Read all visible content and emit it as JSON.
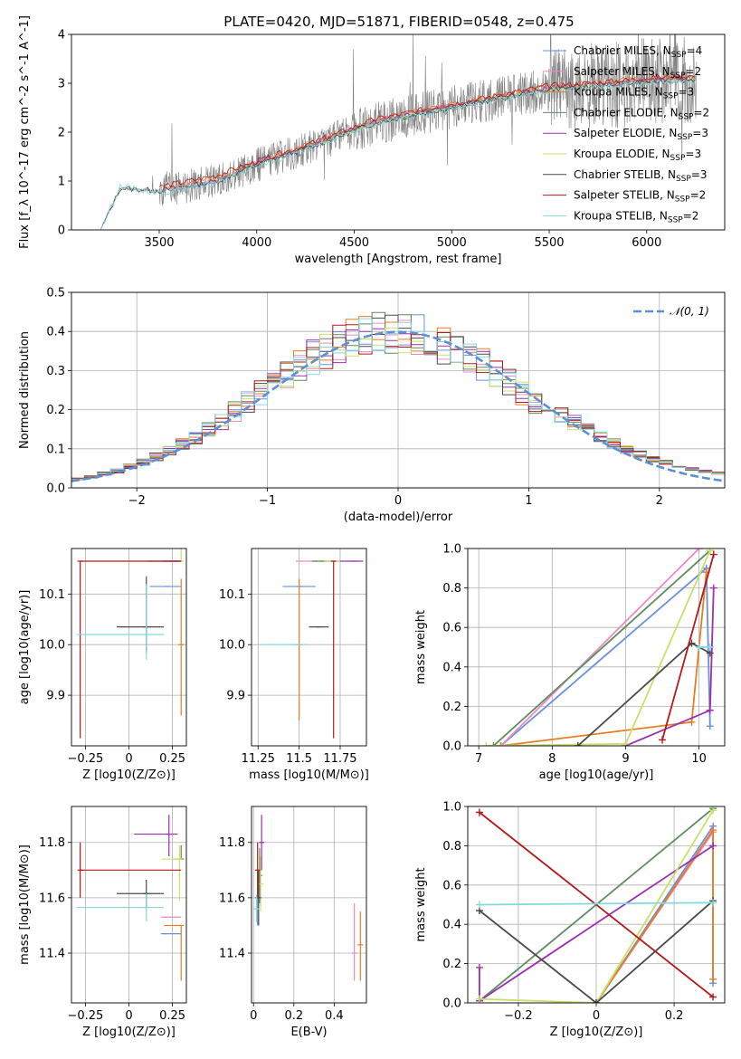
{
  "title": "PLATE=0420, MJD=51871, FIBERID=0548, z=0.475",
  "colors": {
    "series": [
      "#6a8fdc",
      "#e98ac5",
      "#e67e22",
      "#5e8c5e",
      "#9b30b0",
      "#c8e06a",
      "#4a4a4a",
      "#b51a1a",
      "#82d9de"
    ],
    "observed": "#808080",
    "normal": "#5b8fd6",
    "grid": "#b0b0b0"
  },
  "series_labels": [
    "Chabrier MILES, N_SSP=4",
    "Salpeter MILES, N_SSP=2",
    "Kroupa MILES, N_SSP=3",
    "Chabrier ELODIE, N_SSP=2",
    "Salpeter ELODIE, N_SSP=3",
    "Kroupa ELODIE, N_SSP=3",
    "Chabrier STELIB, N_SSP=3",
    "Salpeter STELIB, N_SSP=2",
    "Kroupa STELIB, N_SSP=2"
  ],
  "chart_data": [
    {
      "id": "spectrum",
      "type": "line",
      "title": "PLATE=0420, MJD=51871, FIBERID=0548, z=0.475",
      "xlabel": "wavelength [Angstrom, rest frame]",
      "ylabel": "Flux [f_λ 10^-17 erg cm^-2 s^-1 A^-1]",
      "xlim": [
        3050,
        6400
      ],
      "ylim": [
        0,
        4
      ],
      "xticks": [
        3500,
        4000,
        4500,
        5000,
        5500,
        6000
      ],
      "yticks": [
        0,
        1,
        2,
        3,
        4
      ],
      "legend_position": "top-right",
      "series": [
        {
          "name": "Chabrier MILES, N_SSP=4",
          "x": [
            3520,
            3800,
            4000,
            4300,
            4600,
            4900,
            5100,
            5300,
            5500,
            5700,
            6000,
            6250
          ],
          "y": [
            0.82,
            1.0,
            1.35,
            1.75,
            2.2,
            2.45,
            2.6,
            2.75,
            2.9,
            2.95,
            3.05,
            3.1
          ]
        },
        {
          "name": "Salpeter MILES, N_SSP=2",
          "x": [
            3520,
            3800,
            4000,
            4300,
            4600,
            4900,
            5100,
            5300,
            5500,
            5700,
            6000,
            6250
          ],
          "y": [
            0.84,
            1.03,
            1.37,
            1.77,
            2.22,
            2.47,
            2.62,
            2.77,
            2.92,
            2.97,
            3.07,
            3.12
          ]
        },
        {
          "name": "Kroupa MILES, N_SSP=3",
          "x": [
            3520,
            3800,
            4000,
            4300,
            4600,
            4900,
            5100,
            5300,
            5500,
            5700,
            6000,
            6250
          ],
          "y": [
            0.85,
            1.05,
            1.38,
            1.8,
            2.25,
            2.5,
            2.65,
            2.8,
            2.95,
            3.0,
            3.1,
            3.15
          ]
        },
        {
          "name": "Chabrier ELODIE, N_SSP=2",
          "x": [
            3900,
            4000,
            4300,
            4600,
            4900,
            5100,
            5300,
            5500,
            5700,
            6000,
            6250
          ],
          "y": [
            1.25,
            1.35,
            1.75,
            2.2,
            2.45,
            2.6,
            2.75,
            2.9,
            2.95,
            3.05,
            3.1
          ]
        },
        {
          "name": "Salpeter ELODIE, N_SSP=3",
          "x": [
            3900,
            4000,
            4300,
            4600,
            4900,
            5100,
            5300,
            5500,
            5700,
            6000,
            6250
          ],
          "y": [
            1.26,
            1.36,
            1.76,
            2.21,
            2.46,
            2.61,
            2.76,
            2.91,
            2.96,
            3.06,
            3.11
          ]
        },
        {
          "name": "Kroupa ELODIE, N_SSP=3",
          "x": [
            3900,
            4000,
            4300,
            4600,
            4900,
            5100,
            5300,
            5500,
            5700,
            6000,
            6250
          ],
          "y": [
            1.24,
            1.34,
            1.74,
            2.19,
            2.44,
            2.59,
            2.74,
            2.89,
            2.94,
            3.04,
            3.09
          ]
        },
        {
          "name": "Chabrier STELIB, N_SSP=3",
          "x": [
            3200,
            3300,
            3500,
            3800,
            4000,
            4300,
            4600,
            4900,
            5100,
            5300,
            5500,
            5700,
            6000,
            6250
          ],
          "y": [
            0.0,
            0.85,
            0.8,
            1.0,
            1.33,
            1.73,
            2.18,
            2.43,
            2.58,
            2.73,
            2.88,
            2.93,
            3.03,
            3.08
          ]
        },
        {
          "name": "Salpeter STELIB, N_SSP=2",
          "x": [
            3500,
            3800,
            4000,
            4300,
            4600,
            4900,
            5100,
            5300,
            5500,
            5700,
            6000,
            6250
          ],
          "y": [
            0.88,
            1.12,
            1.4,
            1.8,
            2.25,
            2.5,
            2.65,
            2.8,
            2.95,
            3.0,
            3.1,
            3.15
          ]
        },
        {
          "name": "Kroupa STELIB, N_SSP=2",
          "x": [
            3200,
            3300,
            3500,
            3800,
            4000,
            4300,
            4600,
            4900,
            5100,
            5300,
            5500,
            5700,
            6000,
            6250
          ],
          "y": [
            0.0,
            0.9,
            0.75,
            0.95,
            1.3,
            1.7,
            2.15,
            2.4,
            2.55,
            2.7,
            2.85,
            2.9,
            3.0,
            3.05
          ]
        }
      ]
    },
    {
      "id": "residuals",
      "type": "line",
      "xlabel": "(data-model)/error",
      "ylabel": "Normed distribution",
      "xlim": [
        -2.5,
        2.5
      ],
      "ylim": [
        0,
        0.5
      ],
      "xticks": [
        -2,
        -1,
        0,
        1,
        2
      ],
      "yticks": [
        0.0,
        0.1,
        0.2,
        0.3,
        0.4,
        0.5
      ],
      "legend": "𝒩(0, 1)",
      "legend_position": "top-right",
      "note": "step histograms of nine fits plus standard normal curve"
    },
    {
      "id": "age_vs_Z",
      "type": "scatter",
      "xlabel": "Z [log10(Z/Z⊙)]",
      "ylabel": "age [log10(age/yr)]",
      "xlim": [
        -0.33,
        0.33
      ],
      "ylim": [
        9.8,
        10.19
      ],
      "xticks": [
        -0.25,
        0.0,
        0.25
      ],
      "yticks": [
        9.9,
        10.0,
        10.1
      ],
      "points": [
        {
          "x": 0.22,
          "y": 10.115,
          "xerr": [
            0.1,
            0.08
          ],
          "yerr": [
            0.0,
            0.0
          ]
        },
        {
          "x": 0.25,
          "y": 10.165,
          "xerr": [
            0.05,
            0.05
          ],
          "yerr": [
            0.0,
            0.0
          ]
        },
        {
          "x": 0.3,
          "y": 10.0,
          "xerr": [
            0.0,
            0.0
          ],
          "yerr": [
            0.14,
            0.13
          ]
        },
        {
          "x": 0.12,
          "y": 10.165,
          "xerr": [
            0.0,
            0.18
          ],
          "yerr": [
            0.0,
            0.0
          ]
        },
        {
          "x": 0.28,
          "y": 10.165,
          "xerr": [
            0.09,
            0.02
          ],
          "yerr": [
            0.0,
            0.0
          ]
        },
        {
          "x": 0.3,
          "y": 10.165,
          "xerr": [
            0.0,
            0.0
          ],
          "yerr": [
            0.0,
            0.07
          ]
        },
        {
          "x": 0.1,
          "y": 10.035,
          "xerr": [
            0.17,
            0.1
          ],
          "yerr": [
            0.05,
            0.1
          ]
        },
        {
          "x": -0.28,
          "y": 10.165,
          "xerr": [
            0.0,
            0.58
          ],
          "yerr": [
            0.35,
            0.0
          ]
        },
        {
          "x": 0.1,
          "y": 10.02,
          "xerr": [
            0.4,
            0.1
          ],
          "yerr": [
            0.05,
            0.1
          ]
        }
      ]
    },
    {
      "id": "age_vs_mass",
      "type": "scatter",
      "xlabel": "mass [log10(M/M⊙)]",
      "ylabel": "",
      "xlim": [
        11.21,
        11.91
      ],
      "ylim": [
        9.8,
        10.19
      ],
      "xticks": [
        11.25,
        11.5,
        11.75
      ],
      "yticks": [
        9.9,
        10.0,
        10.1
      ],
      "points": [
        {
          "x": 11.5,
          "y": 10.115,
          "xerr": [
            0.1,
            0.1
          ]
        },
        {
          "x": 11.58,
          "y": 10.165,
          "xerr": [
            0.1,
            0.1
          ]
        },
        {
          "x": 11.5,
          "y": 10.0,
          "yerr": [
            0.15,
            0.13
          ]
        },
        {
          "x": 11.65,
          "y": 10.165,
          "xerr": [
            0.07,
            0.07
          ]
        },
        {
          "x": 11.83,
          "y": 10.165,
          "xerr": [
            0.1,
            0.06
          ]
        },
        {
          "x": 11.7,
          "y": 10.165,
          "xerr": [
            0.05,
            0.05
          ]
        },
        {
          "x": 11.62,
          "y": 10.035,
          "xerr": [
            0.06,
            0.06
          ]
        },
        {
          "x": 11.71,
          "y": 10.165,
          "yerr": [
            0.35,
            0.0
          ]
        },
        {
          "x": 11.47,
          "y": 10.0,
          "xerr": [
            0.2,
            0.08
          ]
        }
      ]
    },
    {
      "id": "massweight_vs_age",
      "type": "line",
      "xlabel": "age [log10(age/yr)]",
      "ylabel": "mass weight",
      "xlim": [
        6.85,
        10.35
      ],
      "ylim": [
        0,
        1
      ],
      "xticks": [
        7,
        8,
        9,
        10
      ],
      "yticks": [
        0.0,
        0.2,
        0.4,
        0.6,
        0.8,
        1.0
      ],
      "series": [
        {
          "name": "Chabrier MILES, N_SSP=4",
          "x": [
            7.3,
            10.1,
            10.15
          ],
          "y": [
            0.0,
            0.9,
            0.1
          ]
        },
        {
          "name": "Salpeter MILES, N_SSP=2",
          "x": [
            7.3,
            10.0
          ],
          "y": [
            0.0,
            1.0
          ]
        },
        {
          "name": "Kroupa MILES, N_SSP=3",
          "x": [
            7.3,
            9.9,
            10.1
          ],
          "y": [
            0.0,
            0.12,
            0.88
          ]
        },
        {
          "name": "Chabrier ELODIE, N_SSP=2",
          "x": [
            7.2,
            10.15
          ],
          "y": [
            0.0,
            0.99
          ]
        },
        {
          "name": "Salpeter ELODIE, N_SSP=3",
          "x": [
            9.0,
            10.15,
            10.2
          ],
          "y": [
            0.0,
            0.18,
            0.8
          ]
        },
        {
          "name": "Kroupa ELODIE, N_SSP=3",
          "x": [
            7.1,
            9.0,
            10.15
          ],
          "y": [
            0.0,
            0.01,
            0.99
          ]
        },
        {
          "name": "Chabrier STELIB, N_SSP=3",
          "x": [
            8.35,
            9.9,
            10.15
          ],
          "y": [
            0.0,
            0.52,
            0.47
          ]
        },
        {
          "name": "Salpeter STELIB, N_SSP=2",
          "x": [
            9.5,
            10.2
          ],
          "y": [
            0.03,
            0.97
          ]
        },
        {
          "name": "Kroupa STELIB, N_SSP=2",
          "x": [
            10.0,
            10.15
          ],
          "y": [
            0.5,
            0.5
          ]
        }
      ]
    },
    {
      "id": "mass_vs_Z",
      "type": "scatter",
      "xlabel": "Z [log10(Z/Z⊙)]",
      "ylabel": "mass [log10(M/M⊙)]",
      "xlim": [
        -0.33,
        0.33
      ],
      "ylim": [
        11.22,
        11.93
      ],
      "xticks": [
        -0.25,
        0.0,
        0.25
      ],
      "yticks": [
        11.4,
        11.6,
        11.8
      ],
      "points": [
        {
          "x": 0.2,
          "y": 11.47,
          "xerr": [
            0.0,
            0.1
          ]
        },
        {
          "x": 0.2,
          "y": 11.53,
          "xerr": [
            0.0,
            0.1
          ]
        },
        {
          "x": 0.3,
          "y": 11.5,
          "xerr": [
            0.1,
            0.0
          ],
          "yerr": [
            0.2,
            0.0
          ]
        },
        {
          "x": 0.3,
          "y": 11.74,
          "xerr": [
            0.05,
            0.0
          ],
          "yerr": [
            0.0,
            0.05
          ]
        },
        {
          "x": 0.23,
          "y": 11.83,
          "xerr": [
            0.2,
            0.05
          ],
          "yerr": [
            0.08,
            0.07
          ]
        },
        {
          "x": 0.29,
          "y": 11.74,
          "xerr": [
            0.1,
            0.01
          ],
          "yerr": [
            0.15,
            0.05
          ]
        },
        {
          "x": 0.1,
          "y": 11.615,
          "xerr": [
            0.17,
            0.1
          ],
          "yerr": [
            0.05,
            0.05
          ]
        },
        {
          "x": -0.28,
          "y": 11.7,
          "xerr": [
            0.0,
            0.58
          ],
          "yerr": [
            0.1,
            0.1
          ]
        },
        {
          "x": 0.1,
          "y": 11.565,
          "xerr": [
            0.4,
            0.1
          ],
          "yerr": [
            0.05,
            0.05
          ]
        }
      ]
    },
    {
      "id": "mass_vs_EBV",
      "type": "scatter",
      "xlabel": "E(B-V)",
      "ylabel": "",
      "xlim": [
        -0.01,
        0.56
      ],
      "ylim": [
        11.22,
        11.93
      ],
      "xticks": [
        0.0,
        0.2,
        0.4
      ],
      "yticks": [
        11.4,
        11.6,
        11.8
      ],
      "points": [
        {
          "x": 0.02,
          "y": 11.6,
          "yerr": [
            0.1,
            0.1
          ]
        },
        {
          "x": 0.5,
          "y": 11.4,
          "yerr": [
            0.1,
            0.18
          ]
        },
        {
          "x": 0.53,
          "y": 11.43,
          "yerr": [
            0.13,
            0.12
          ]
        },
        {
          "x": 0.03,
          "y": 11.68,
          "yerr": [
            0.1,
            0.1
          ]
        },
        {
          "x": 0.04,
          "y": 11.8,
          "yerr": [
            0.1,
            0.1
          ]
        },
        {
          "x": 0.035,
          "y": 11.65,
          "yerr": [
            0.1,
            0.1
          ]
        },
        {
          "x": 0.025,
          "y": 11.6,
          "yerr": [
            0.1,
            0.1
          ]
        },
        {
          "x": 0.02,
          "y": 11.7,
          "yerr": [
            0.1,
            0.1
          ]
        },
        {
          "x": 0.015,
          "y": 11.56,
          "yerr": [
            0.05,
            0.05
          ]
        }
      ]
    },
    {
      "id": "massweight_vs_Z",
      "type": "line",
      "xlabel": "Z [log10(Z/Z⊙)]",
      "ylabel": "mass weight",
      "xlim": [
        -0.33,
        0.33
      ],
      "ylim": [
        0,
        1
      ],
      "xticks": [
        -0.2,
        0.0,
        0.2
      ],
      "yticks": [
        0.0,
        0.2,
        0.4,
        0.6,
        0.8,
        1.0
      ],
      "series": [
        {
          "name": "Chabrier MILES, N_SSP=4",
          "x": [
            0.0,
            0.3,
            0.3
          ],
          "y": [
            0.0,
            0.9,
            0.1
          ]
        },
        {
          "name": "Salpeter MILES, N_SSP=2",
          "x": [
            0.0,
            0.3
          ],
          "y": [
            0.0,
            0.87
          ]
        },
        {
          "name": "Kroupa MILES, N_SSP=3",
          "x": [
            0.0,
            0.3,
            0.3
          ],
          "y": [
            0.0,
            0.88,
            0.12
          ]
        },
        {
          "name": "Chabrier ELODIE, N_SSP=2",
          "x": [
            -0.3,
            0.3
          ],
          "y": [
            0.01,
            0.99
          ]
        },
        {
          "name": "Salpeter ELODIE, N_SSP=3",
          "x": [
            -0.3,
            -0.3,
            0.3
          ],
          "y": [
            0.18,
            0.01,
            0.8
          ]
        },
        {
          "name": "Kroupa ELODIE, N_SSP=3",
          "x": [
            -0.3,
            0.0,
            0.3
          ],
          "y": [
            0.02,
            0.0,
            0.98
          ]
        },
        {
          "name": "Chabrier STELIB, N_SSP=3",
          "x": [
            -0.3,
            0.0,
            0.3
          ],
          "y": [
            0.47,
            0.0,
            0.52
          ]
        },
        {
          "name": "Salpeter STELIB, N_SSP=2",
          "x": [
            -0.3,
            0.3
          ],
          "y": [
            0.97,
            0.03
          ]
        },
        {
          "name": "Kroupa STELIB, N_SSP=2",
          "x": [
            -0.3,
            0.3
          ],
          "y": [
            0.5,
            0.51
          ]
        }
      ]
    }
  ]
}
